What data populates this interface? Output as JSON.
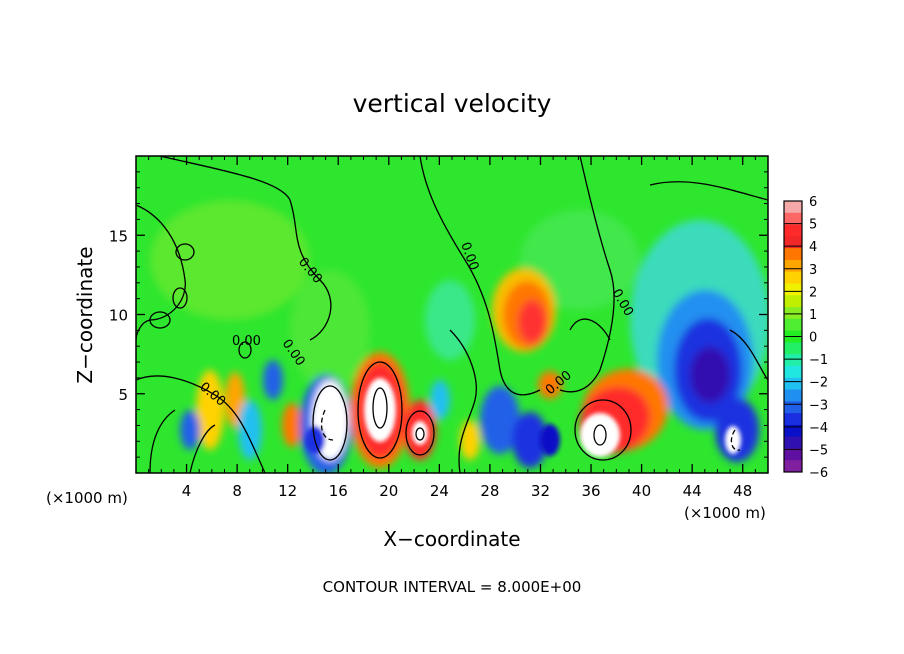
{
  "chart_data": {
    "type": "heatmap",
    "title": "vertical velocity",
    "xlabel": "X−coordinate",
    "ylabel": "Z−coordinate",
    "x_unit_left": "(×1000 m)",
    "x_unit_right": "(×1000 m)",
    "x_range": [
      0,
      50
    ],
    "z_range": [
      0,
      20
    ],
    "x_ticks": [
      4,
      8,
      12,
      16,
      20,
      24,
      28,
      32,
      36,
      40,
      44,
      48
    ],
    "z_ticks": [
      5,
      10,
      15
    ],
    "colorbar": {
      "labels": [
        "6",
        "5",
        "4",
        "3",
        "2",
        "1",
        "0",
        "−1",
        "−2",
        "−3",
        "−4",
        "−5",
        "−6"
      ],
      "colors": [
        "#f4a8a8",
        "#ff6666",
        "#ff2a2a",
        "#f02828",
        "#ff7700",
        "#ffa500",
        "#ffd200",
        "#f0f000",
        "#c0f000",
        "#88ee22",
        "#50ee30",
        "#22ee22",
        "#22ee66",
        "#22eeaa",
        "#20e8e0",
        "#20c0f0",
        "#2090f0",
        "#2060e8",
        "#1a30e0",
        "#0a10c8",
        "#3010b0",
        "#6010a0",
        "#8020a0"
      ]
    },
    "contour_labels": [
      "0.00",
      "0.00",
      "0.00",
      "0.00",
      "0.00",
      "0.00",
      "0.00"
    ],
    "features": [
      {
        "x": 15.5,
        "z": 3.3,
        "value": 6
      },
      {
        "x": 14.2,
        "z": 2.3,
        "value": -5
      },
      {
        "x": 19.3,
        "z": 4.1,
        "value": 6
      },
      {
        "x": 22.4,
        "z": 2.4,
        "value": 5
      },
      {
        "x": 30.8,
        "z": 9.4,
        "value": 4
      },
      {
        "x": 36.6,
        "z": 2.5,
        "value": 6
      },
      {
        "x": 39.5,
        "z": 5.5,
        "value": 4
      },
      {
        "x": 45.0,
        "z": 6.5,
        "value": -5
      },
      {
        "x": 46.6,
        "z": 2.2,
        "value": 6
      },
      {
        "x": 10.6,
        "z": 6.0,
        "value": -3
      },
      {
        "x": 29.0,
        "z": 3.0,
        "value": -4
      }
    ],
    "footer": "CONTOUR INTERVAL = 8.000E+00"
  }
}
